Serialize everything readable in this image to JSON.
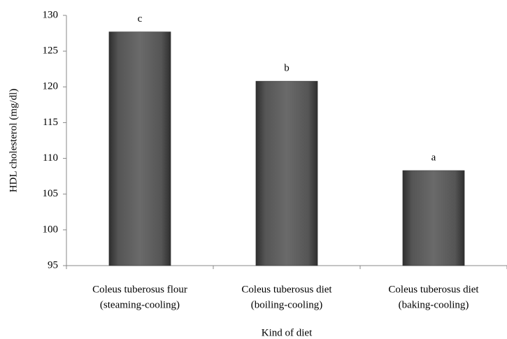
{
  "chart_data": {
    "type": "bar",
    "y_axis_label": "HDL cholesterol (mg/dl)",
    "x_axis_label": "Kind of diet",
    "categories": [
      [
        "Coleus tuberosus flour",
        "(steaming-cooling)"
      ],
      [
        "Coleus tuberosus diet",
        "(boiling-cooling)"
      ],
      [
        "Coleus tuberosus diet",
        "(baking-cooling)"
      ]
    ],
    "values": [
      127.7,
      120.8,
      108.3
    ],
    "annotations": [
      "c",
      "b",
      "a"
    ],
    "color": "#555555",
    "ylim": [
      95,
      130
    ],
    "yticks": [
      95,
      100,
      105,
      110,
      115,
      120,
      125,
      130
    ],
    "grid": false
  }
}
